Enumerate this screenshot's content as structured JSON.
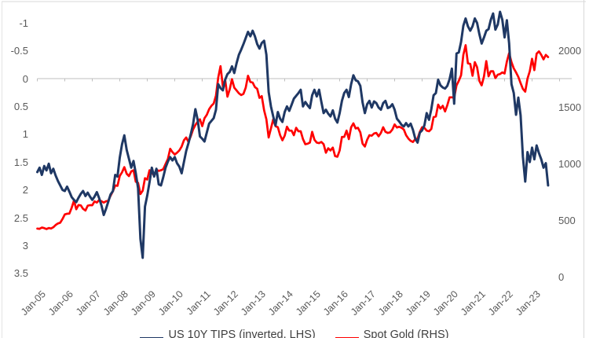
{
  "chart_data": {
    "type": "line",
    "title": "",
    "x_start": "Jan-2005",
    "x_end": "Aug-2023",
    "x_frequency": "monthly",
    "x_tick_labels": [
      "Jan-05",
      "Jan-06",
      "Jan-07",
      "Jan-08",
      "Jan-09",
      "Jan-10",
      "Jan-11",
      "Jan-12",
      "Jan-13",
      "Jan-14",
      "Jan-15",
      "Jan-16",
      "Jan-17",
      "Jan-18",
      "Jan-19",
      "Jan-20",
      "Jan-21",
      "Jan-22",
      "Jan-23"
    ],
    "left_axis": {
      "description": "US 10Y TIPS real yield %, axis inverted (low yields at top)",
      "ticks": [
        -1,
        -0.5,
        0,
        0.5,
        1,
        1.5,
        2,
        2.5,
        3,
        3.5
      ],
      "inverted": true,
      "grid": false
    },
    "right_axis": {
      "description": "Spot gold price, USD/oz",
      "ticks": [
        2000,
        1500,
        1000,
        500,
        0
      ],
      "min": 0,
      "max": 2000,
      "grid": false
    },
    "legend_position": "bottom",
    "series": [
      {
        "name": "US 10Y TIPS (inverted, LHS)",
        "axis": "left",
        "color": "#1f3864",
        "values": [
          1.68,
          1.6,
          1.73,
          1.57,
          1.65,
          1.53,
          1.7,
          1.62,
          1.74,
          1.84,
          1.92,
          2.0,
          2.02,
          1.94,
          2.03,
          2.13,
          2.18,
          2.22,
          2.14,
          2.07,
          2.02,
          2.11,
          2.05,
          2.12,
          2.18,
          2.12,
          2.04,
          2.15,
          2.28,
          2.45,
          2.34,
          2.21,
          2.08,
          2.02,
          1.73,
          1.76,
          1.42,
          1.18,
          1.02,
          1.28,
          1.44,
          1.6,
          1.48,
          1.7,
          1.97,
          2.88,
          3.22,
          2.3,
          2.1,
          1.86,
          1.6,
          1.76,
          1.62,
          1.9,
          1.92,
          1.77,
          1.6,
          1.49,
          1.41,
          1.47,
          1.41,
          1.52,
          1.58,
          1.7,
          1.5,
          1.3,
          1.16,
          1.0,
          0.82,
          0.55,
          0.74,
          1.04,
          1.08,
          1.13,
          0.97,
          0.81,
          0.76,
          0.71,
          0.56,
          0.1,
          0.17,
          0.21,
          0.02,
          -0.08,
          -0.12,
          -0.22,
          -0.1,
          -0.28,
          -0.43,
          -0.52,
          -0.62,
          -0.73,
          -0.84,
          -0.76,
          -0.86,
          -0.76,
          -0.62,
          -0.54,
          -0.64,
          -0.68,
          -0.43,
          0.24,
          0.5,
          0.68,
          0.84,
          0.6,
          0.72,
          0.78,
          0.6,
          0.5,
          0.58,
          0.47,
          0.36,
          0.31,
          0.26,
          0.2,
          0.5,
          0.42,
          0.48,
          0.53,
          0.3,
          0.2,
          0.32,
          0.2,
          0.42,
          0.62,
          0.56,
          0.63,
          0.68,
          0.57,
          0.72,
          0.79,
          0.62,
          0.4,
          0.26,
          0.2,
          0.33,
          0.1,
          -0.06,
          0.03,
          0.05,
          0.13,
          0.43,
          0.62,
          0.46,
          0.4,
          0.52,
          0.41,
          0.44,
          0.52,
          0.56,
          0.44,
          0.4,
          0.53,
          0.51,
          0.46,
          0.56,
          0.72,
          0.77,
          0.83,
          0.86,
          0.8,
          0.86,
          0.81,
          0.92,
          1.08,
          1.15,
          0.97,
          0.93,
          0.84,
          0.62,
          0.74,
          0.55,
          0.3,
          0.26,
          0.02,
          0.12,
          0.16,
          0.18,
          0.13,
          0.01,
          -0.18,
          0.45,
          -0.45,
          -0.47,
          -0.66,
          -0.95,
          -1.08,
          -0.94,
          -0.86,
          -0.94,
          -1.08,
          -1.0,
          -0.8,
          -0.63,
          -0.74,
          -0.86,
          -0.89,
          -1.06,
          -1.17,
          -0.88,
          -0.97,
          -1.2,
          -1.06,
          -0.74,
          -1.05,
          -0.63,
          0.1,
          0.26,
          0.65,
          0.34,
          0.66,
          1.4,
          1.85,
          1.32,
          1.5,
          1.24,
          1.45,
          1.2,
          1.34,
          1.45,
          1.6,
          1.52,
          1.92
        ]
      },
      {
        "name": "Spot Gold (RHS)",
        "axis": "right",
        "color": "#ff0000",
        "values": [
          425,
          423,
          434,
          429,
          421,
          430,
          426,
          437,
          456,
          470,
          477,
          510,
          550,
          556,
          557,
          610,
          672,
          596,
          633,
          630,
          599,
          585,
          627,
          632,
          631,
          665,
          655,
          678,
          667,
          655,
          666,
          672,
          715,
          755,
          806,
          803,
          890,
          922,
          968,
          910,
          889,
          930,
          940,
          839,
          829,
          730,
          760,
          870,
          858,
          940,
          925,
          890,
          945,
          935,
          940,
          950,
          995,
          1040,
          1130,
          1100,
          1080,
          1095,
          1115,
          1150,
          1205,
          1230,
          1190,
          1240,
          1300,
          1340,
          1370,
          1390,
          1330,
          1400,
          1430,
          1480,
          1510,
          1530,
          1600,
          1760,
          1860,
          1680,
          1740,
          1590,
          1655,
          1745,
          1670,
          1645,
          1620,
          1605,
          1615,
          1670,
          1775,
          1720,
          1715,
          1675,
          1660,
          1580,
          1595,
          1470,
          1390,
          1230,
          1310,
          1390,
          1330,
          1320,
          1250,
          1205,
          1245,
          1325,
          1290,
          1290,
          1250,
          1315,
          1285,
          1285,
          1215,
          1170,
          1175,
          1185,
          1280,
          1210,
          1185,
          1180,
          1190,
          1170,
          1095,
          1135,
          1115,
          1140,
          1065,
          1060,
          1115,
          1235,
          1235,
          1290,
          1215,
          1320,
          1355,
          1310,
          1315,
          1275,
          1175,
          1150,
          1210,
          1250,
          1245,
          1265,
          1270,
          1240,
          1270,
          1320,
          1280,
          1270,
          1275,
          1300,
          1345,
          1318,
          1325,
          1315,
          1300,
          1250,
          1220,
          1200,
          1190,
          1215,
          1220,
          1280,
          1320,
          1315,
          1290,
          1285,
          1305,
          1410,
          1415,
          1520,
          1485,
          1510,
          1460,
          1515,
          1585,
          1585,
          1580,
          1690,
          1730,
          1780,
          1960,
          2045,
          1885,
          1880,
          1775,
          1895,
          1850,
          1730,
          1690,
          1770,
          1905,
          1770,
          1815,
          1815,
          1755,
          1785,
          1790,
          1805,
          1795,
          1900,
          1975,
          1895,
          1840,
          1805,
          1765,
          1710,
          1660,
          1635,
          1750,
          1815,
          1925,
          1825,
          1970,
          1990,
          1960,
          1920,
          1960,
          1940
        ]
      }
    ]
  },
  "legend": {
    "items": [
      {
        "label": "US 10Y TIPS (inverted, LHS)",
        "color": "#1f3864"
      },
      {
        "label": "Spot Gold (RHS)",
        "color": "#ff0000"
      }
    ]
  },
  "colors": {
    "tips_line": "#1f3864",
    "gold_line": "#ff0000",
    "axis_text": "#595959",
    "axis_line": "#bfbfbf",
    "chart_border": "#d9d9d9",
    "legend_text": "#3f3f3f",
    "background": "#ffffff"
  }
}
